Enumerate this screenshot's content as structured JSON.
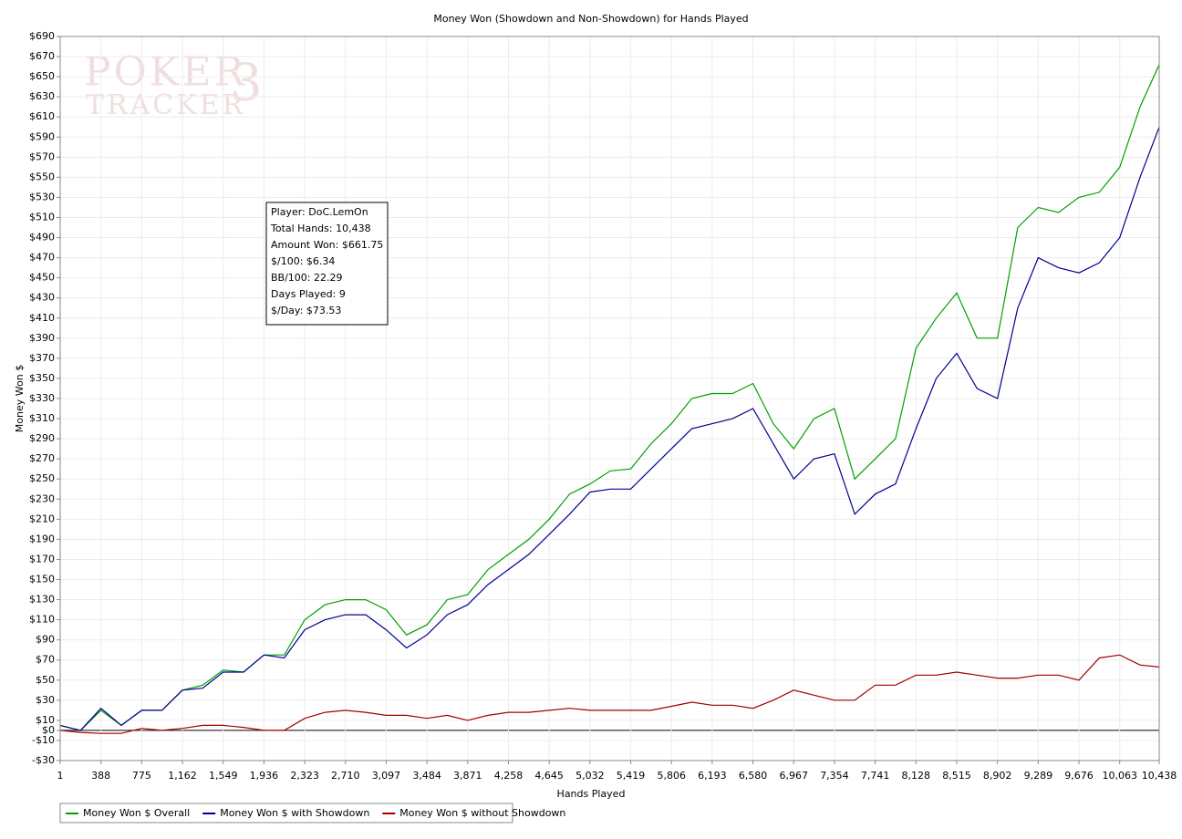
{
  "chart_data": {
    "type": "line",
    "title": "Money Won (Showdown and Non-Showdown) for Hands Played",
    "x_label": "Hands Played",
    "y_label": "Money Won $",
    "watermark": [
      "POKER",
      "TRACKER",
      "3"
    ],
    "info_box": [
      "Player: DoC.LemOn",
      "Total Hands: 10,438",
      "Amount Won: $661.75",
      "$/100: $6.34",
      "BB/100: 22.29",
      "Days Played: 9",
      "$/Day: $73.53"
    ],
    "grid": true,
    "legend": "bottom-left",
    "x": [
      1,
      194,
      388,
      581,
      775,
      968,
      1162,
      1355,
      1549,
      1742,
      1936,
      2129,
      2323,
      2516,
      2710,
      2903,
      3097,
      3290,
      3484,
      3677,
      3871,
      4064,
      4258,
      4451,
      4645,
      4838,
      5032,
      5225,
      5419,
      5612,
      5806,
      5999,
      6193,
      6386,
      6580,
      6773,
      6967,
      7160,
      7354,
      7547,
      7741,
      7934,
      8128,
      8321,
      8515,
      8708,
      8902,
      9095,
      9289,
      9482,
      9676,
      9869,
      10063,
      10256,
      10438
    ],
    "series": [
      {
        "name": "Money Won $ Overall",
        "color": "#00a000",
        "values": [
          5,
          0,
          20,
          5,
          20,
          20,
          40,
          45,
          60,
          58,
          75,
          75,
          110,
          125,
          130,
          130,
          120,
          95,
          105,
          130,
          135,
          160,
          175,
          190,
          210,
          235,
          245,
          258,
          260,
          285,
          305,
          330,
          335,
          335,
          345,
          305,
          280,
          310,
          320,
          250,
          270,
          290,
          380,
          410,
          435,
          390,
          390,
          500,
          520,
          515,
          530,
          535,
          560,
          620,
          662
        ]
      },
      {
        "name": "Money Won $ with Showdown",
        "color": "#000090",
        "values": [
          5,
          0,
          22,
          5,
          20,
          20,
          40,
          42,
          58,
          58,
          75,
          72,
          100,
          110,
          115,
          115,
          100,
          82,
          95,
          115,
          125,
          145,
          160,
          175,
          195,
          215,
          237,
          240,
          240,
          260,
          280,
          300,
          305,
          310,
          320,
          285,
          250,
          270,
          275,
          215,
          235,
          245,
          300,
          350,
          375,
          340,
          330,
          420,
          470,
          460,
          455,
          465,
          490,
          550,
          600
        ]
      },
      {
        "name": "Money Won $ without Showdown",
        "color": "#a00000",
        "values": [
          0,
          -2,
          -3,
          -3,
          2,
          0,
          2,
          5,
          5,
          3,
          0,
          0,
          12,
          18,
          20,
          18,
          15,
          15,
          12,
          15,
          10,
          15,
          18,
          18,
          20,
          22,
          20,
          20,
          20,
          20,
          24,
          28,
          25,
          25,
          22,
          30,
          40,
          35,
          30,
          30,
          45,
          45,
          55,
          55,
          58,
          55,
          52,
          52,
          55,
          55,
          50,
          72,
          75,
          65,
          63
        ]
      }
    ],
    "xlim": [
      1,
      10438
    ],
    "xticks": [
      1,
      {
        "value": 388,
        "label": "388"
      },
      {
        "value": 775,
        "label": "775"
      },
      {
        "value": 1162,
        "label": "1,162"
      },
      {
        "value": 1549,
        "label": "1,549"
      },
      {
        "value": 1936,
        "label": "1,936"
      },
      {
        "value": 2323,
        "label": "2,323"
      },
      {
        "value": 2710,
        "label": "2,710"
      },
      {
        "value": 3097,
        "label": "3,097"
      },
      {
        "value": 3484,
        "label": "3,484"
      },
      {
        "value": 3871,
        "label": "3,871"
      },
      {
        "value": 4258,
        "label": "4,258"
      },
      {
        "value": 4645,
        "label": "4,645"
      },
      {
        "value": 5032,
        "label": "5,032"
      },
      {
        "value": 5419,
        "label": "5,419"
      },
      {
        "value": 5806,
        "label": "5,806"
      },
      {
        "value": 6193,
        "label": "6,193"
      },
      {
        "value": 6580,
        "label": "6,580"
      },
      {
        "value": 6967,
        "label": "6,967"
      },
      {
        "value": 7354,
        "label": "7,354"
      },
      {
        "value": 7741,
        "label": "7,741"
      },
      {
        "value": 8128,
        "label": "8,128"
      },
      {
        "value": 8515,
        "label": "8,515"
      },
      {
        "value": 8902,
        "label": "8,902"
      },
      {
        "value": 9289,
        "label": "9,289"
      },
      {
        "value": 9676,
        "label": "9,676"
      },
      {
        "value": 10063,
        "label": "10,063"
      },
      {
        "value": 10438,
        "label": "10,438"
      }
    ],
    "ylim": [
      -30,
      690
    ],
    "yticks": [
      {
        "value": -30,
        "label": "-$30"
      },
      {
        "value": -10,
        "label": "-$10"
      },
      {
        "value": 0,
        "label": "$0"
      },
      {
        "value": 10,
        "label": "$10"
      },
      {
        "value": 30,
        "label": "$30"
      },
      {
        "value": 50,
        "label": "$50"
      },
      {
        "value": 70,
        "label": "$70"
      },
      {
        "value": 90,
        "label": "$90"
      },
      {
        "value": 110,
        "label": "$110"
      },
      {
        "value": 130,
        "label": "$130"
      },
      {
        "value": 150,
        "label": "$150"
      },
      {
        "value": 170,
        "label": "$170"
      },
      {
        "value": 190,
        "label": "$190"
      },
      {
        "value": 210,
        "label": "$210"
      },
      {
        "value": 230,
        "label": "$230"
      },
      {
        "value": 250,
        "label": "$250"
      },
      {
        "value": 270,
        "label": "$270"
      },
      {
        "value": 290,
        "label": "$290"
      },
      {
        "value": 310,
        "label": "$310"
      },
      {
        "value": 330,
        "label": "$330"
      },
      {
        "value": 350,
        "label": "$350"
      },
      {
        "value": 370,
        "label": "$370"
      },
      {
        "value": 390,
        "label": "$390"
      },
      {
        "value": 410,
        "label": "$410"
      },
      {
        "value": 430,
        "label": "$430"
      },
      {
        "value": 450,
        "label": "$450"
      },
      {
        "value": 470,
        "label": "$470"
      },
      {
        "value": 490,
        "label": "$490"
      },
      {
        "value": 510,
        "label": "$510"
      },
      {
        "value": 530,
        "label": "$530"
      },
      {
        "value": 550,
        "label": "$550"
      },
      {
        "value": 570,
        "label": "$570"
      },
      {
        "value": 590,
        "label": "$590"
      },
      {
        "value": 610,
        "label": "$610"
      },
      {
        "value": 630,
        "label": "$630"
      },
      {
        "value": 650,
        "label": "$650"
      },
      {
        "value": 670,
        "label": "$670"
      },
      {
        "value": 690,
        "label": "$690"
      }
    ]
  }
}
